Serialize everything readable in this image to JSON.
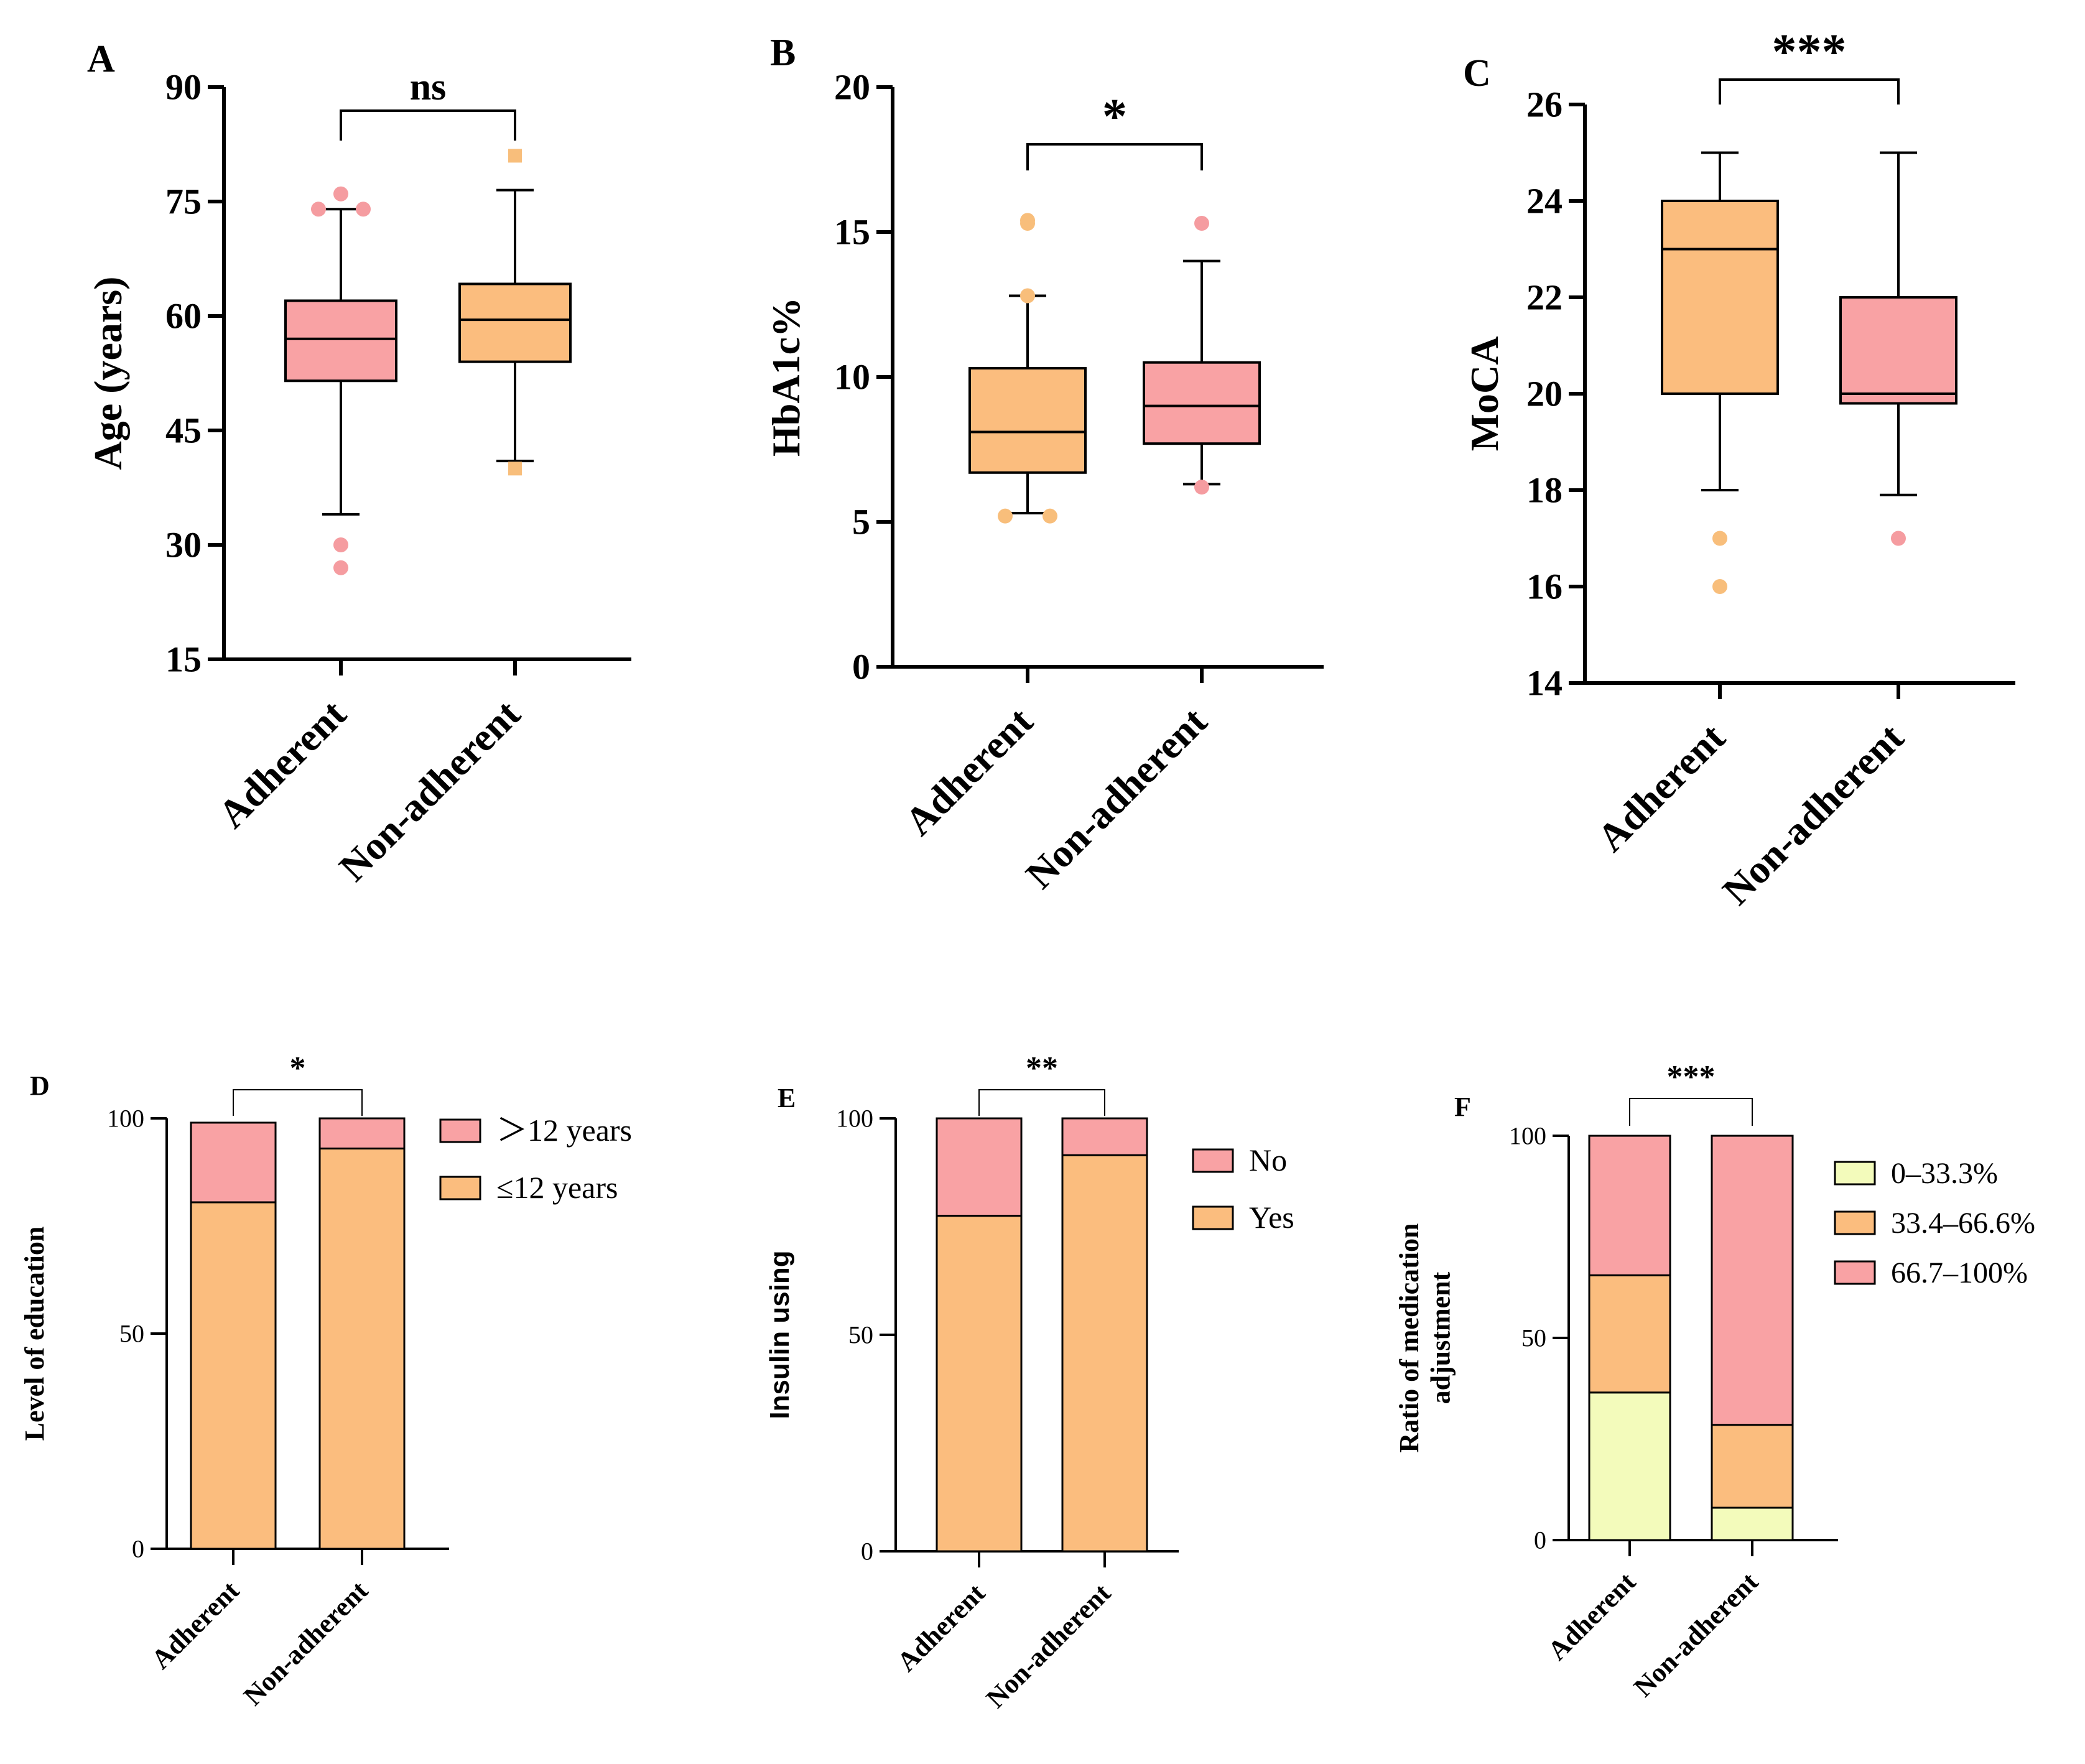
{
  "colors": {
    "pink": "#F9A2A4",
    "orange": "#FBBD7E",
    "yellow": "#F3FBBB",
    "outlier_pink": "#F59CA0",
    "outlier_orange": "#F8BE7B",
    "axis": "#000000"
  },
  "chart_data": [
    {
      "panel": "A",
      "type": "boxplot",
      "ylabel": "Age (years)",
      "ylim": [
        15,
        90
      ],
      "yticks": [
        15,
        30,
        45,
        60,
        75,
        90
      ],
      "categories": [
        "Adherent",
        "Non-adherent"
      ],
      "boxes": [
        {
          "name": "Adherent",
          "color": "pink",
          "whisker_low": 34,
          "q1": 51.5,
          "median": 57,
          "q3": 62,
          "whisker_high": 74,
          "outliers": [
            76,
            74,
            74,
            30,
            27
          ],
          "outlier_shape": "circle"
        },
        {
          "name": "Non-adherent",
          "color": "orange",
          "whisker_low": 41,
          "q1": 54,
          "median": 59.5,
          "q3": 64.2,
          "whisker_high": 76.5,
          "outliers": [
            81,
            40
          ],
          "outlier_shape": "square"
        }
      ],
      "significance": "ns"
    },
    {
      "panel": "B",
      "type": "boxplot",
      "ylabel": "HbA1c%",
      "ylim": [
        0,
        20
      ],
      "yticks": [
        0,
        5,
        10,
        15,
        20
      ],
      "categories": [
        "Adherent",
        "Non-adherent"
      ],
      "boxes": [
        {
          "name": "Adherent",
          "color": "orange",
          "whisker_low": 5.3,
          "q1": 6.7,
          "median": 8.1,
          "q3": 10.3,
          "whisker_high": 12.8,
          "outliers": [
            15.4,
            15.3,
            12.8,
            5.2,
            5.2
          ],
          "outlier_shape": "circle"
        },
        {
          "name": "Non-adherent",
          "color": "pink",
          "whisker_low": 6.3,
          "q1": 7.7,
          "median": 9.0,
          "q3": 10.5,
          "whisker_high": 14.0,
          "outliers": [
            15.3,
            6.2
          ],
          "outlier_shape": "circle"
        }
      ],
      "significance": "*"
    },
    {
      "panel": "C",
      "type": "boxplot",
      "ylabel": "MoCA",
      "ylim": [
        14,
        26
      ],
      "yticks": [
        14,
        16,
        18,
        20,
        22,
        24,
        26
      ],
      "categories": [
        "Adherent",
        "Non-adherent"
      ],
      "boxes": [
        {
          "name": "Adherent",
          "color": "orange",
          "whisker_low": 18,
          "q1": 20,
          "median": 23,
          "q3": 24,
          "whisker_high": 25,
          "outliers": [
            17,
            16
          ],
          "outlier_shape": "circle"
        },
        {
          "name": "Non-adherent",
          "color": "pink",
          "whisker_low": 17.9,
          "q1": 19.8,
          "median": 20,
          "q3": 22,
          "whisker_high": 25,
          "outliers": [
            17
          ],
          "outlier_shape": "circle"
        }
      ],
      "significance": "***"
    },
    {
      "panel": "D",
      "type": "stacked-bar",
      "ylabel": "Level of education",
      "ylim": [
        0,
        100
      ],
      "yticks": [
        0,
        50,
        100
      ],
      "categories": [
        "Adherent",
        "Non-adherent"
      ],
      "series": [
        {
          "name": "≤12 years",
          "color": "orange",
          "values": [
            80.5,
            93
          ]
        },
        {
          "name": "＞12 years",
          "color": "pink",
          "values": [
            18.5,
            7
          ]
        }
      ],
      "legend": [
        "＞12 years",
        "≤12 years"
      ],
      "significance": "*"
    },
    {
      "panel": "E",
      "type": "stacked-bar",
      "ylabel": "Insulin using",
      "ylim": [
        0,
        100
      ],
      "yticks": [
        0,
        50,
        100
      ],
      "categories": [
        "Adherent",
        "Non-adherent"
      ],
      "series": [
        {
          "name": "Yes",
          "color": "orange",
          "values": [
            77.5,
            91.5
          ]
        },
        {
          "name": "No",
          "color": "pink",
          "values": [
            22.5,
            8.5
          ]
        }
      ],
      "legend": [
        "No",
        "Yes"
      ],
      "significance": "**"
    },
    {
      "panel": "F",
      "type": "stacked-bar",
      "ylabel": "Ratio of medication adjustment",
      "ylabel_lines": [
        "Ratio of medication",
        "adjustment"
      ],
      "ylim": [
        0,
        100
      ],
      "yticks": [
        0,
        50,
        100
      ],
      "categories": [
        "Adherent",
        "Non-adherent"
      ],
      "series": [
        {
          "name": "0–33.3%",
          "color": "yellow",
          "values": [
            36.5,
            8
          ]
        },
        {
          "name": "33.4–66.6%",
          "color": "orange",
          "values": [
            29,
            20.5
          ]
        },
        {
          "name": "66.7–100%",
          "color": "pink",
          "values": [
            34.5,
            71.5
          ]
        }
      ],
      "legend": [
        "0–33.3%",
        "33.4–66.6%",
        "66.7–100%"
      ],
      "significance": "***"
    }
  ]
}
